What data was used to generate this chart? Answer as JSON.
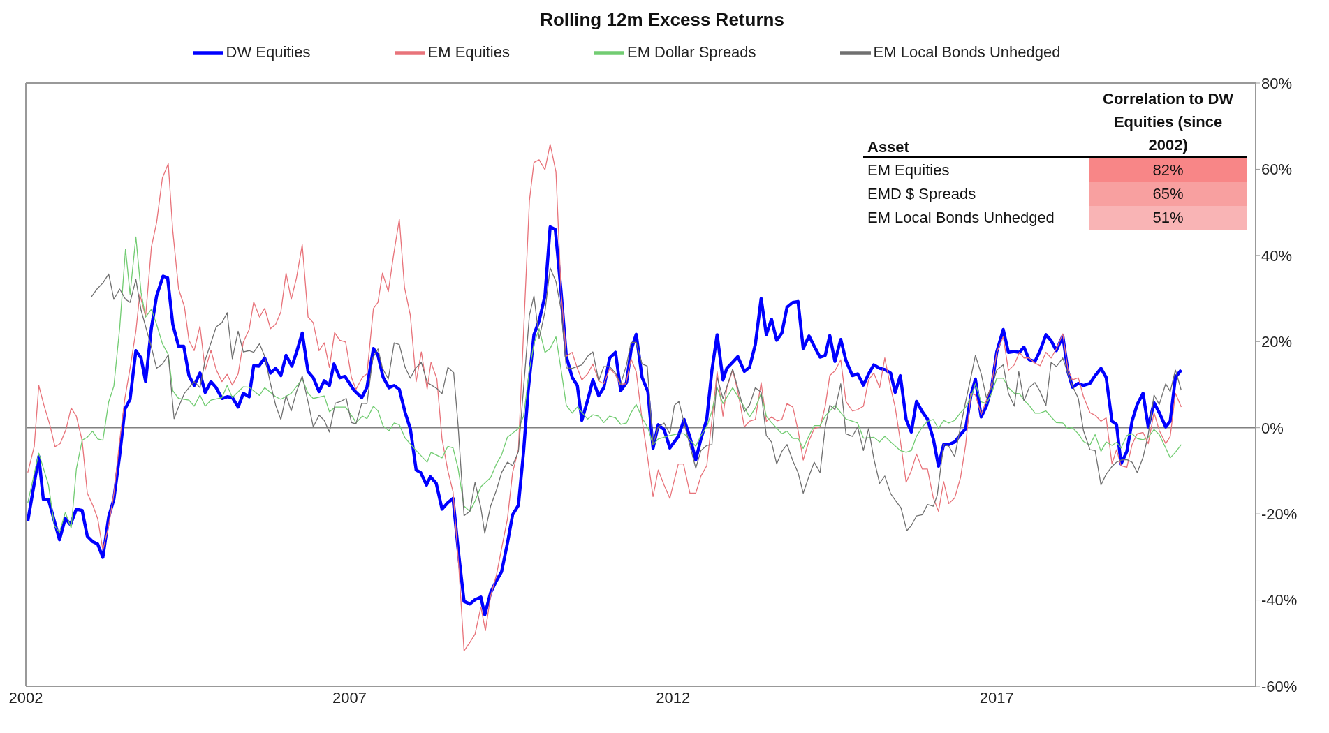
{
  "chart_data": {
    "type": "line",
    "title": "Rolling 12m Excess Returns",
    "legend": "top",
    "marker": "none",
    "line_style": "solid",
    "xlim": [
      2002,
      2021
    ],
    "xticks": [
      2002,
      2007,
      2012,
      2017
    ],
    "ylim": [
      -60,
      80
    ],
    "yticks": [
      {
        "value": -60,
        "label": "-60%"
      },
      {
        "value": -40,
        "label": "-40%"
      },
      {
        "value": -20,
        "label": "-20%"
      },
      {
        "value": 0,
        "label": "0%"
      },
      {
        "value": 20,
        "label": "20%"
      },
      {
        "value": 40,
        "label": "40%"
      },
      {
        "value": 60,
        "label": "60%"
      },
      {
        "value": 80,
        "label": "80%"
      }
    ],
    "ref_lines": [
      {
        "axis": "y",
        "value": 0,
        "color": "#808080"
      }
    ],
    "annotations": [
      "Asset",
      "Correlation to DW Equities (since 2002)",
      "EM Equities",
      "82%",
      "EMD $ Spreads",
      "65%",
      "EM Local Bonds Unhedged",
      "51%"
    ],
    "series": [
      {
        "name": "DW Equities",
        "color": "#0000ff",
        "x": [
          2002.03,
          2002.2,
          2002.27,
          2002.35,
          2002.52,
          2002.61,
          2002.69,
          2002.78,
          2002.87,
          2002.95,
          2003.03,
          2003.11,
          2003.19,
          2003.28,
          2003.36,
          2003.45,
          2003.53,
          2003.61,
          2003.7,
          2003.78,
          2003.85,
          2003.94,
          2004.02,
          2004.12,
          2004.19,
          2004.27,
          2004.36,
          2004.44,
          2004.52,
          2004.6,
          2004.69,
          2004.77,
          2004.86,
          2004.94,
          2005.03,
          2005.11,
          2005.19,
          2005.28,
          2005.36,
          2005.45,
          2005.52,
          2005.6,
          2005.69,
          2005.78,
          2005.86,
          2005.94,
          2006.02,
          2006.11,
          2006.19,
          2006.27,
          2006.36,
          2006.44,
          2006.53,
          2006.61,
          2006.69,
          2006.76,
          2006.85,
          2006.93,
          2007.07,
          2007.19,
          2007.27,
          2007.37,
          2007.44,
          2007.52,
          2007.61,
          2007.69,
          2007.77,
          2007.86,
          2007.94,
          2008.03,
          2008.1,
          2008.19,
          2008.25,
          2008.34,
          2008.43,
          2008.52,
          2008.6,
          2008.68,
          2008.77,
          2008.86,
          2008.94,
          2009.03,
          2009.09,
          2009.18,
          2009.26,
          2009.35,
          2009.44,
          2009.52,
          2009.61,
          2009.69,
          2009.76,
          2009.85,
          2009.93,
          2010.02,
          2010.1,
          2010.18,
          2010.27,
          2010.35,
          2010.44,
          2010.52,
          2010.59,
          2010.68,
          2010.76,
          2010.85,
          2010.93,
          2011.02,
          2011.11,
          2011.19,
          2011.28,
          2011.35,
          2011.43,
          2011.52,
          2011.61,
          2011.69,
          2011.77,
          2011.86,
          2011.95,
          2012.08,
          2012.17,
          2012.26,
          2012.35,
          2012.43,
          2012.52,
          2012.6,
          2012.68,
          2012.77,
          2012.83,
          2012.92,
          2013.0,
          2013.1,
          2013.18,
          2013.27,
          2013.36,
          2013.44,
          2013.52,
          2013.6,
          2013.68,
          2013.76,
          2013.85,
          2013.93,
          2014.01,
          2014.1,
          2014.18,
          2014.27,
          2014.35,
          2014.42,
          2014.5,
          2014.59,
          2014.67,
          2014.77,
          2014.85,
          2014.94,
          2015.02,
          2015.1,
          2015.19,
          2015.27,
          2015.36,
          2015.43,
          2015.51,
          2015.6,
          2015.68,
          2015.76,
          2015.85,
          2015.93,
          2016.02,
          2016.1,
          2016.18,
          2016.26,
          2016.35,
          2016.44,
          2016.52,
          2016.6,
          2016.67,
          2016.76,
          2016.84,
          2016.92,
          2017.0,
          2017.1,
          2017.18,
          2017.27,
          2017.35,
          2017.42,
          2017.5,
          2017.59,
          2017.67,
          2017.76,
          2017.84,
          2017.92,
          2018.02,
          2018.1,
          2018.17,
          2018.26,
          2018.34,
          2018.44,
          2018.52,
          2018.61,
          2018.69,
          2018.78,
          2018.85,
          2018.92,
          2019.01,
          2019.09,
          2019.17,
          2019.26,
          2019.34,
          2019.43,
          2019.51,
          2019.61,
          2019.68,
          2019.76,
          2019.85
        ],
        "values": [
          -21.7,
          -6.7,
          -16.6,
          -16.7,
          -26,
          -21,
          -22.5,
          -18.9,
          -19.2,
          -25.2,
          -26.4,
          -27,
          -30.1,
          -20.7,
          -16.6,
          -6.3,
          4.3,
          6.6,
          17.9,
          16.2,
          10.7,
          23.2,
          30.6,
          35.2,
          34.8,
          24,
          18.9,
          18.9,
          12.1,
          9.8,
          12.7,
          8.2,
          10.7,
          9.3,
          6.8,
          7.2,
          7,
          4.8,
          8,
          7.2,
          14.4,
          14.3,
          16.2,
          12.7,
          13.8,
          12.1,
          16.8,
          14.3,
          17.9,
          22,
          13,
          11.6,
          8.4,
          10.9,
          9.8,
          14.8,
          11.6,
          11.9,
          8.7,
          7,
          9.4,
          18.4,
          16.8,
          11.7,
          9.3,
          9.8,
          8.9,
          3.5,
          -0.2,
          -9.8,
          -10.4,
          -13.3,
          -11.4,
          -12.9,
          -18.9,
          -17.4,
          -16.4,
          -28.4,
          -40.3,
          -40.9,
          -39.9,
          -39.3,
          -43.4,
          -38.3,
          -35.8,
          -33.4,
          -26.8,
          -20.2,
          -18,
          -5.5,
          8.4,
          21.6,
          24.8,
          30.6,
          46.6,
          46,
          31.4,
          16.6,
          11.7,
          9.8,
          1.7,
          6.4,
          11.1,
          7.4,
          9.3,
          16.2,
          17.5,
          8.6,
          10.5,
          18,
          21.7,
          11.7,
          8.4,
          -4.8,
          0.7,
          -0.4,
          -4.7,
          -2,
          1.9,
          -2.2,
          -7.5,
          -2.6,
          2,
          13.4,
          21.6,
          11.1,
          13.8,
          15.2,
          16.5,
          13.1,
          14,
          19.3,
          30,
          21.6,
          25.2,
          20.3,
          22,
          28,
          29.1,
          29.3,
          18.4,
          21.3,
          18.9,
          16.4,
          16.8,
          21.4,
          15.4,
          20.5,
          15.6,
          12.1,
          12.5,
          9.9,
          12.5,
          14.6,
          13.8,
          13.5,
          12.7,
          8.2,
          12.1,
          1.9,
          -1,
          6.1,
          3.7,
          2,
          -2.6,
          -8.9,
          -3.9,
          -3.9,
          -3.3,
          -1.6,
          -0.2,
          7.5,
          11.3,
          2.5,
          5,
          9.3,
          17.6,
          22.8,
          17.5,
          17.7,
          17.5,
          18.7,
          15.8,
          15.4,
          17.9,
          21.6,
          20.2,
          17.9,
          21.3,
          13,
          9.4,
          10.3,
          9.8,
          10.3,
          12.1,
          13.8,
          11.7,
          1.5,
          0.8,
          -8.4,
          -5.5,
          1.5,
          5.4,
          8,
          0.2,
          5.8,
          3.5,
          0.2,
          1.5,
          11.7,
          13.4
        ]
      },
      {
        "name": "EM Equities",
        "color": "#e8737a",
        "x": [
          2002.03,
          2002.13,
          2002.2,
          2002.28,
          2002.37,
          2002.45,
          2002.53,
          2002.62,
          2002.7,
          2002.78,
          2002.87,
          2002.95,
          2003.04,
          2003.11,
          2003.19,
          2003.28,
          2003.36,
          2003.45,
          2003.53,
          2003.61,
          2003.7,
          2003.76,
          2003.85,
          2003.94,
          2004.02,
          2004.11,
          2004.2,
          2004.27,
          2004.36,
          2004.45,
          2004.52,
          2004.6,
          2004.69,
          2004.77,
          2004.86,
          2004.94,
          2005.03,
          2005.11,
          2005.19,
          2005.28,
          2005.36,
          2005.45,
          2005.52,
          2005.61,
          2005.69,
          2005.78,
          2005.86,
          2005.94,
          2006.02,
          2006.1,
          2006.18,
          2006.27,
          2006.36,
          2006.44,
          2006.53,
          2006.61,
          2006.69,
          2006.77,
          2006.85,
          2006.94,
          2007.03,
          2007.1,
          2007.2,
          2007.27,
          2007.37,
          2007.44,
          2007.51,
          2007.6,
          2007.68,
          2007.77,
          2007.85,
          2007.94,
          2008.03,
          2008.11,
          2008.2,
          2008.26,
          2008.35,
          2008.43,
          2008.52,
          2008.6,
          2008.69,
          2008.77,
          2008.86,
          2008.94,
          2009.03,
          2009.1,
          2009.18,
          2009.27,
          2009.35,
          2009.44,
          2009.52,
          2009.61,
          2009.69,
          2009.78,
          2009.85,
          2009.93,
          2010.02,
          2010.1,
          2010.19,
          2010.27,
          2010.35,
          2010.44,
          2010.52,
          2010.59,
          2010.68,
          2010.76,
          2010.85,
          2010.93,
          2011.02,
          2011.1,
          2011.18,
          2011.27,
          2011.35,
          2011.43,
          2011.52,
          2011.6,
          2011.69,
          2011.77,
          2011.86,
          2011.95,
          2012.08,
          2012.16,
          2012.26,
          2012.35,
          2012.43,
          2012.52,
          2012.61,
          2012.68,
          2012.77,
          2012.83,
          2012.92,
          2013.0,
          2013.1,
          2013.18,
          2013.27,
          2013.36,
          2013.44,
          2013.52,
          2013.61,
          2013.68,
          2013.76,
          2013.85,
          2013.93,
          2014.01,
          2014.1,
          2014.18,
          2014.27,
          2014.35,
          2014.42,
          2014.5,
          2014.59,
          2014.67,
          2014.77,
          2014.85,
          2014.94,
          2015.02,
          2015.1,
          2015.19,
          2015.27,
          2015.36,
          2015.43,
          2015.51,
          2015.6,
          2015.68,
          2015.76,
          2015.85,
          2015.93,
          2016.02,
          2016.1,
          2016.18,
          2016.26,
          2016.35,
          2016.44,
          2016.52,
          2016.6,
          2016.67,
          2016.76,
          2016.84,
          2016.92,
          2017.0,
          2017.1,
          2017.18,
          2017.27,
          2017.35,
          2017.42,
          2017.5,
          2017.59,
          2017.67,
          2017.76,
          2017.84,
          2017.92,
          2018.02,
          2018.1,
          2018.17,
          2018.26,
          2018.34,
          2018.44,
          2018.52,
          2018.61,
          2018.69,
          2018.78,
          2018.85,
          2018.92,
          2019.01,
          2019.09,
          2019.17,
          2019.26,
          2019.34,
          2019.43,
          2019.51,
          2019.61,
          2019.68,
          2019.76,
          2019.85
        ],
        "values": [
          -10.4,
          -4.3,
          9.8,
          5.2,
          0.7,
          -4.4,
          -3.7,
          -0.4,
          4.6,
          2.7,
          -3,
          -15.2,
          -18.2,
          -21.1,
          -28.4,
          -22.7,
          -15.3,
          -3,
          6.8,
          13.8,
          22.4,
          31,
          25.8,
          42,
          47.6,
          58,
          61.3,
          45.7,
          32.2,
          28.1,
          20.3,
          17.9,
          23.6,
          13.4,
          18,
          13.5,
          10.7,
          12.4,
          9.9,
          12.5,
          19.9,
          22.8,
          29.2,
          25.7,
          27.7,
          23,
          24,
          26.9,
          35.9,
          29.8,
          34.7,
          42.5,
          25.7,
          24.4,
          17.9,
          19.7,
          14,
          22.1,
          20.3,
          19.9,
          11.7,
          8.9,
          11.7,
          12.5,
          27.7,
          29.1,
          35.9,
          31.6,
          40,
          48.4,
          32.6,
          26.1,
          10.7,
          17.6,
          9,
          15.2,
          11.3,
          -2.6,
          -10,
          -14.9,
          -32.5,
          -51.8,
          -49.8,
          -47.9,
          -41.6,
          -47.1,
          -39.1,
          -34.2,
          -28,
          -21.2,
          -10.4,
          -5.1,
          22.4,
          52.7,
          61.6,
          62.2,
          59.9,
          65.8,
          59.4,
          31.4,
          16.6,
          17.5,
          13.8,
          11.1,
          12.5,
          14.8,
          10.9,
          10.2,
          13.8,
          12.5,
          10.1,
          10.2,
          16,
          13,
          1.9,
          -6.3,
          -16,
          -9.8,
          -13.3,
          -16.4,
          -8.4,
          -8.4,
          -15.2,
          -15.2,
          -11.2,
          -8.8,
          3.1,
          13,
          2.7,
          9.3,
          13.4,
          8.4,
          0.2,
          1.5,
          1.9,
          10.5,
          1.5,
          2.5,
          1.6,
          1.9,
          5.6,
          4.8,
          -0.6,
          -7.5,
          -3,
          -0.2,
          0.2,
          5,
          12.1,
          13.2,
          15.8,
          6.1,
          3.9,
          4.2,
          5,
          11.1,
          12.7,
          9.3,
          16.2,
          9.3,
          4.8,
          -3,
          -12.7,
          -10,
          -6.1,
          -9.6,
          -9.6,
          -16.3,
          -19.4,
          -12.5,
          -17.6,
          -16.3,
          -11.6,
          -3.9,
          8,
          7.6,
          3.1,
          6.4,
          10.1,
          17.5,
          21.1,
          13.3,
          14.6,
          17.5,
          16.2,
          16.2,
          15,
          14.4,
          17.5,
          16.2,
          18.3,
          21.8,
          13.4,
          11.1,
          11.6,
          7.2,
          3.5,
          2.9,
          1.5,
          2.3,
          -8.4,
          -5.1,
          -8.8,
          -9.2,
          -3.9,
          -1.4,
          -1.1,
          -3.7,
          3.5,
          -0.6,
          -3.7,
          -2,
          8,
          4.8
        ]
      },
      {
        "name": "EM Dollar Spreads",
        "color": "#72cc72",
        "x": [
          2002.03,
          2002.2,
          2002.35,
          2002.44,
          2002.52,
          2002.61,
          2002.7,
          2002.78,
          2002.87,
          2002.95,
          2003.03,
          2003.11,
          2003.19,
          2003.28,
          2003.36,
          2003.45,
          2003.54,
          2003.61,
          2003.7,
          2003.78,
          2003.85,
          2003.94,
          2004.02,
          2004.11,
          2004.2,
          2004.27,
          2004.36,
          2004.52,
          2004.6,
          2004.69,
          2004.77,
          2004.86,
          2005.03,
          2005.11,
          2005.19,
          2005.36,
          2005.45,
          2005.61,
          2005.69,
          2005.86,
          2005.94,
          2006.1,
          2006.27,
          2006.36,
          2006.44,
          2006.61,
          2006.69,
          2006.78,
          2006.94,
          2007.07,
          2007.1,
          2007.2,
          2007.27,
          2007.37,
          2007.44,
          2007.52,
          2007.61,
          2007.69,
          2007.77,
          2007.86,
          2008.03,
          2008.2,
          2008.26,
          2008.43,
          2008.52,
          2008.6,
          2008.68,
          2008.77,
          2008.86,
          2008.94,
          2009.03,
          2009.18,
          2009.27,
          2009.35,
          2009.44,
          2009.61,
          2009.69,
          2009.78,
          2009.85,
          2009.93,
          2010.02,
          2010.1,
          2010.19,
          2010.27,
          2010.35,
          2010.44,
          2010.52,
          2010.68,
          2010.76,
          2010.85,
          2010.93,
          2011.02,
          2011.11,
          2011.19,
          2011.28,
          2011.35,
          2011.43,
          2011.52,
          2011.61,
          2011.69,
          2011.77,
          2011.95,
          2012.08,
          2012.17,
          2012.35,
          2012.43,
          2012.52,
          2012.6,
          2012.68,
          2012.77,
          2012.92,
          2013.1,
          2013.18,
          2013.27,
          2013.36,
          2013.44,
          2013.52,
          2013.68,
          2013.76,
          2013.85,
          2013.93,
          2014.01,
          2014.1,
          2014.18,
          2014.27,
          2014.35,
          2014.5,
          2014.59,
          2014.67,
          2014.77,
          2014.85,
          2014.94,
          2015.1,
          2015.19,
          2015.27,
          2015.36,
          2015.51,
          2015.6,
          2015.68,
          2015.76,
          2015.85,
          2015.93,
          2016.02,
          2016.1,
          2016.18,
          2016.26,
          2016.35,
          2016.44,
          2016.52,
          2016.6,
          2016.67,
          2016.76,
          2016.84,
          2016.92,
          2017.0,
          2017.1,
          2017.18,
          2017.27,
          2017.35,
          2017.42,
          2017.5,
          2017.59,
          2017.67,
          2017.76,
          2017.84,
          2017.92,
          2018.02,
          2018.1,
          2018.17,
          2018.26,
          2018.34,
          2018.44,
          2018.52,
          2018.61,
          2018.69,
          2018.78,
          2018.85,
          2018.92,
          2019.01,
          2019.09,
          2019.17,
          2019.26,
          2019.34,
          2019.43,
          2019.51,
          2019.61,
          2019.68,
          2019.76,
          2019.85
        ],
        "values": [
          -17.4,
          -5.9,
          -13.3,
          -22.7,
          -24.3,
          -19.7,
          -23.3,
          -9.6,
          -2.9,
          -2.2,
          -0.8,
          -2.6,
          -2.9,
          6,
          9.7,
          23.2,
          41.5,
          31,
          44.3,
          31.4,
          25.7,
          27.5,
          24,
          19.5,
          17,
          8.6,
          6.8,
          6.4,
          5,
          7.6,
          5,
          6.4,
          7,
          9.8,
          7,
          9.5,
          9.4,
          7.5,
          9.3,
          7.2,
          6.6,
          8,
          11.3,
          8,
          6.8,
          7.4,
          3.7,
          4.8,
          4.8,
          2,
          1.1,
          2.7,
          2.1,
          5,
          3.9,
          0.4,
          -0.7,
          1.1,
          0.7,
          -2.4,
          -5.3,
          -8,
          -5.7,
          -7,
          -4.3,
          -4.7,
          -9.6,
          -18.2,
          -19.4,
          -17,
          -13.7,
          -11.6,
          -8.4,
          -6.3,
          -2.2,
          -0.2,
          2.7,
          13.4,
          19.5,
          23,
          17.5,
          18.4,
          21.1,
          13.4,
          5.2,
          3.4,
          4.8,
          2,
          3,
          2.7,
          1.2,
          2.7,
          2.3,
          0.8,
          1.1,
          3.5,
          5.4,
          2.3,
          0,
          -4,
          -2.6,
          -1.8,
          -1.4,
          -1.4,
          -4.3,
          -1.8,
          0.2,
          3.9,
          9.3,
          5.6,
          9.3,
          4.8,
          2.5,
          4.6,
          8,
          2.7,
          1.2,
          -1.4,
          -0.8,
          -2.5,
          -2.5,
          -4.8,
          -1.8,
          0.5,
          0.5,
          2.7,
          5.2,
          3.5,
          2,
          1.5,
          1.1,
          -2.4,
          -2.2,
          -3.3,
          -2,
          -3.3,
          -5.3,
          -5.7,
          -5.3,
          -2,
          0.2,
          1.5,
          1.9,
          -0.2,
          1.7,
          1.1,
          1.7,
          3.5,
          4.8,
          7,
          10.2,
          6,
          5.6,
          8,
          11.5,
          11.5,
          9.3,
          8,
          7.9,
          6.4,
          5.2,
          3.4,
          3.4,
          3.9,
          2.5,
          1.2,
          1.1,
          -0.2,
          0,
          -1.4,
          -3.2,
          -4,
          -1.6,
          -5.5,
          -3.3,
          -4.1,
          -3.4,
          -4.7,
          -1.8,
          -1.4,
          -2.5,
          -2.8,
          -2.2,
          -0.4,
          -1.6,
          -4.7,
          -7,
          -5.7,
          -3.9
        ]
      },
      {
        "name": "EM Local Bonds Unhedged",
        "color": "#707070",
        "x": [
          2003.01,
          2003.1,
          2003.19,
          2003.28,
          2003.36,
          2003.45,
          2003.54,
          2003.61,
          2003.7,
          2003.78,
          2003.94,
          2004.02,
          2004.11,
          2004.2,
          2004.29,
          2004.36,
          2004.45,
          2004.52,
          2004.6,
          2004.69,
          2004.77,
          2004.86,
          2004.94,
          2005.03,
          2005.11,
          2005.19,
          2005.28,
          2005.36,
          2005.45,
          2005.52,
          2005.61,
          2005.69,
          2005.78,
          2005.86,
          2005.94,
          2006.02,
          2006.1,
          2006.18,
          2006.27,
          2006.36,
          2006.44,
          2006.53,
          2006.61,
          2006.69,
          2006.78,
          2006.86,
          2006.95,
          2007.03,
          2007.1,
          2007.19,
          2007.27,
          2007.36,
          2007.44,
          2007.51,
          2007.6,
          2007.69,
          2007.77,
          2007.86,
          2007.94,
          2008.02,
          2008.11,
          2008.2,
          2008.35,
          2008.43,
          2008.52,
          2008.61,
          2008.68,
          2008.77,
          2008.86,
          2008.94,
          2009.03,
          2009.09,
          2009.18,
          2009.27,
          2009.35,
          2009.44,
          2009.52,
          2009.61,
          2009.69,
          2009.78,
          2009.85,
          2009.93,
          2010.02,
          2010.1,
          2010.19,
          2010.27,
          2010.35,
          2010.44,
          2010.59,
          2010.68,
          2010.76,
          2010.85,
          2010.93,
          2011.02,
          2011.11,
          2011.19,
          2011.28,
          2011.35,
          2011.43,
          2011.52,
          2011.6,
          2011.69,
          2011.77,
          2011.86,
          2011.95,
          2012.02,
          2012.09,
          2012.17,
          2012.35,
          2012.43,
          2012.52,
          2012.6,
          2012.68,
          2012.77,
          2012.92,
          2013.1,
          2013.18,
          2013.27,
          2013.36,
          2013.44,
          2013.52,
          2013.6,
          2013.68,
          2013.76,
          2013.85,
          2013.93,
          2014.01,
          2014.1,
          2014.18,
          2014.27,
          2014.35,
          2014.42,
          2014.5,
          2014.59,
          2014.67,
          2014.77,
          2014.85,
          2014.94,
          2015.02,
          2015.1,
          2015.19,
          2015.27,
          2015.36,
          2015.44,
          2015.52,
          2015.61,
          2015.68,
          2015.76,
          2015.85,
          2015.93,
          2016.02,
          2016.08,
          2016.18,
          2016.26,
          2016.35,
          2016.44,
          2016.52,
          2016.6,
          2016.67,
          2016.76,
          2016.84,
          2016.92,
          2017.0,
          2017.1,
          2017.18,
          2017.27,
          2017.34,
          2017.42,
          2017.5,
          2017.59,
          2017.67,
          2017.76,
          2017.84,
          2017.92,
          2018.02,
          2018.1,
          2018.17,
          2018.26,
          2018.34,
          2018.44,
          2018.52,
          2018.61,
          2018.69,
          2018.78,
          2018.85,
          2018.92,
          2019.01,
          2019.09,
          2019.17,
          2019.26,
          2019.34,
          2019.43,
          2019.51,
          2019.61,
          2019.68,
          2019.76,
          2019.85
        ],
        "values": [
          30.3,
          32.2,
          33.6,
          35.7,
          29.8,
          32.2,
          29.8,
          29.1,
          34.4,
          27.3,
          18.7,
          13.8,
          14.8,
          16.9,
          2.1,
          4.8,
          8,
          9.3,
          10.7,
          9.3,
          15.7,
          19.7,
          23.4,
          24.4,
          26.7,
          16,
          22.4,
          17.6,
          17.9,
          17.5,
          19.5,
          16.6,
          10.2,
          5.2,
          1.9,
          7.5,
          3.9,
          8.3,
          12,
          6,
          0.2,
          2.9,
          1.7,
          -1,
          5.7,
          6.1,
          6.8,
          1.2,
          0.9,
          5.7,
          5.6,
          16.2,
          18.3,
          13.8,
          11.3,
          19.7,
          19.3,
          14,
          11.5,
          13.8,
          15.2,
          10.5,
          9.1,
          7.9,
          14,
          12.8,
          0.2,
          -20.4,
          -19.4,
          -12.7,
          -18.6,
          -24.5,
          -18.2,
          -14.5,
          -10.4,
          -8,
          -8.8,
          -5.5,
          9.3,
          26.1,
          30.6,
          20.7,
          26.9,
          37.1,
          33.9,
          27.3,
          13.9,
          13.8,
          14.6,
          16.6,
          17.6,
          10.9,
          14.2,
          14.2,
          12.7,
          10.1,
          14.6,
          19.8,
          19.8,
          14.8,
          14.3,
          -3.9,
          0.2,
          1.1,
          -1.4,
          5.2,
          6.1,
          1.1,
          -9.4,
          -5.3,
          -4.1,
          -3.9,
          11.7,
          6.8,
          13.6,
          3.7,
          5.2,
          9.3,
          8.2,
          -1.8,
          -3.3,
          -8.4,
          -5.5,
          -3.9,
          -7.7,
          -10.4,
          -15.2,
          -11.2,
          -8,
          -10.4,
          0.2,
          5.2,
          4.2,
          10.2,
          -1.4,
          -2,
          0.2,
          -5.3,
          -0.2,
          -7.1,
          -12.9,
          -11.2,
          -15.3,
          -17,
          -18.6,
          -23.9,
          -22.7,
          -20.5,
          -20.2,
          -17.8,
          -18.2,
          -15.7,
          -3.9,
          -4.3,
          -6.7,
          0.2,
          6.1,
          11.7,
          16.8,
          12.5,
          7,
          9.3,
          13.4,
          14.6,
          8,
          5,
          13,
          6.2,
          9.3,
          10.5,
          8.4,
          5.2,
          15.2,
          14.2,
          16.2,
          12.5,
          9.7,
          6.8,
          -0.7,
          -5.1,
          -5.3,
          -13.3,
          -10.8,
          -9,
          -8,
          -7.5,
          -7.4,
          -8,
          -10.4,
          -6.9,
          -1.6,
          7.6,
          5.4,
          10.2,
          8.4,
          13.4,
          8.7
        ]
      }
    ]
  }
}
